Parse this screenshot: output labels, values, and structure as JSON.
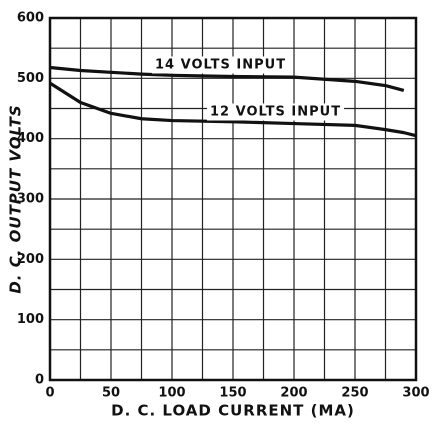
{
  "chart_data": {
    "type": "line",
    "xlabel": "D. C. LOAD CURRENT (MA)",
    "ylabel": "D. C. OUTPUT VOLTS",
    "x": [
      0,
      25,
      50,
      75,
      100,
      150,
      200,
      250,
      275,
      290,
      300
    ],
    "series": [
      {
        "name": "14 VOLTS INPUT",
        "color": "#111111",
        "values": [
          518,
          513,
          510,
          507,
          505,
          503,
          502,
          495,
          488,
          480,
          null
        ]
      },
      {
        "name": "12 VOLTS INPUT",
        "color": "#111111",
        "values": [
          492,
          460,
          442,
          433,
          430,
          428,
          425,
          422,
          415,
          410,
          405
        ]
      }
    ],
    "xlim": [
      0,
      300
    ],
    "xticks": [
      0,
      50,
      100,
      150,
      200,
      250,
      300
    ],
    "ylim": [
      0,
      600
    ],
    "yticks": [
      0,
      100,
      200,
      300,
      400,
      500,
      600
    ],
    "grid": true
  }
}
